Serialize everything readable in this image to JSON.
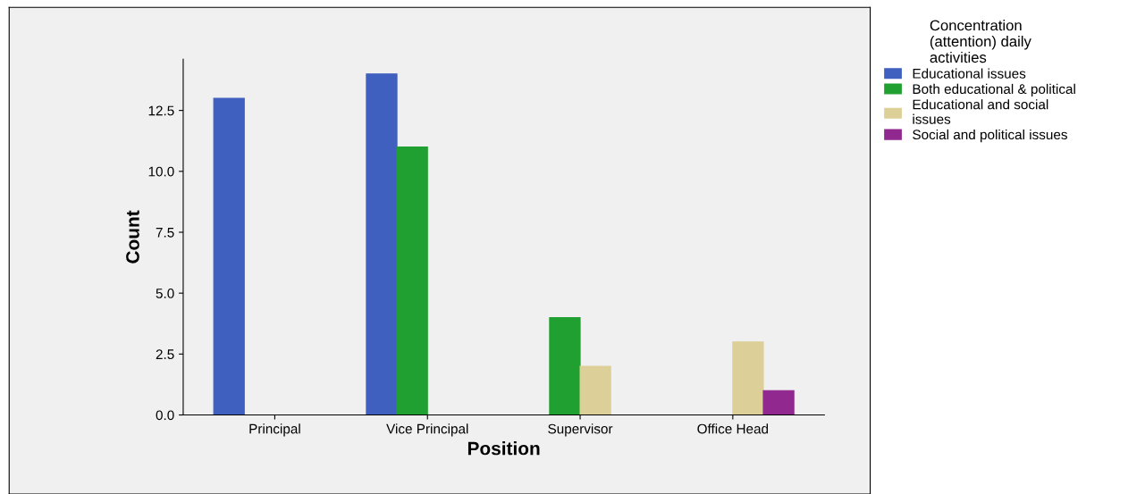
{
  "chart_data": {
    "type": "bar",
    "xlabel": "Position",
    "ylabel": "Count",
    "legend_title": "Concentration\n(attention) daily\nactivities",
    "categories": [
      "Principal",
      "Vice Principal",
      "Supervisor",
      "Office Head"
    ],
    "series": [
      {
        "name": "Educational issues",
        "color": "#4060c0",
        "values": [
          13,
          14,
          null,
          null
        ]
      },
      {
        "name": "Both educational & political",
        "color": "#20a030",
        "values": [
          null,
          11,
          4,
          null
        ]
      },
      {
        "name": "Educational and social\nissues",
        "color": "#dcd098",
        "values": [
          null,
          null,
          2,
          3
        ]
      },
      {
        "name": "Social and political issues",
        "color": "#902890",
        "values": [
          null,
          null,
          null,
          1
        ]
      }
    ],
    "ylim": [
      0,
      14.6
    ],
    "yticks": [
      {
        "value": 0,
        "label": "0.0"
      },
      2.5,
      {
        "value": 5,
        "label": "5.0"
      },
      7.5,
      {
        "value": 10,
        "label": "10.0"
      },
      12.5
    ],
    "grid": false,
    "legend": "right"
  }
}
